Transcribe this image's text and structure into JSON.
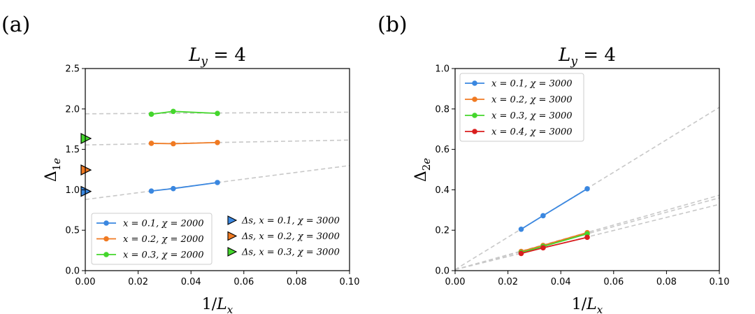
{
  "colors": {
    "blue": "#3a87e0",
    "orange": "#f07a22",
    "green": "#44d62c",
    "red": "#d91e1e",
    "fit": "#c8c8c8"
  },
  "chart_data": [
    {
      "type": "line",
      "panel_label": "(a)",
      "title": "L_y = 4",
      "xlabel": "1/L_x",
      "ylabel": "Δ_1e",
      "xlim": [
        0.0,
        0.1
      ],
      "ylim": [
        0.0,
        2.5
      ],
      "xticks": [
        0.0,
        0.02,
        0.04,
        0.06,
        0.08,
        0.1
      ],
      "xtick_labels": [
        "0.00",
        "0.02",
        "0.04",
        "0.06",
        "0.08",
        "0.10"
      ],
      "yticks": [
        0.0,
        0.5,
        1.0,
        1.5,
        2.0,
        2.5
      ],
      "ytick_labels": [
        "0.0",
        "0.5",
        "1.0",
        "1.5",
        "2.0",
        "2.5"
      ],
      "series": [
        {
          "name": "x = 0.1, χ = 2000",
          "color": "#3a87e0",
          "x": [
            0.025,
            0.0333,
            0.05
          ],
          "y": [
            0.985,
            1.015,
            1.09
          ]
        },
        {
          "name": "x = 0.2, χ = 2000",
          "color": "#f07a22",
          "x": [
            0.025,
            0.0333,
            0.05
          ],
          "y": [
            1.575,
            1.57,
            1.585
          ]
        },
        {
          "name": "x = 0.3, χ = 2000",
          "color": "#44d62c",
          "x": [
            0.025,
            0.0333,
            0.05
          ],
          "y": [
            1.935,
            1.97,
            1.945
          ]
        }
      ],
      "fits": [
        {
          "x": [
            0.0,
            0.1
          ],
          "y": [
            0.88,
            1.3
          ]
        },
        {
          "x": [
            0.0,
            0.1
          ],
          "y": [
            1.555,
            1.615
          ]
        },
        {
          "x": [
            0.0,
            0.1
          ],
          "y": [
            1.94,
            1.96
          ]
        }
      ],
      "markers": [
        {
          "name": "Δ_s, x = 0.1, χ = 3000",
          "color": "#3a87e0",
          "x": 0.0,
          "y": 0.98
        },
        {
          "name": "Δ_s, x = 0.2, χ = 3000",
          "color": "#f07a22",
          "x": 0.0,
          "y": 1.245
        },
        {
          "name": "Δ_s, x = 0.3, χ = 3000",
          "color": "#44d62c",
          "x": 0.0,
          "y": 1.635
        }
      ],
      "legend": [
        {
          "label": "x = 0.1, χ = 2000",
          "color": "#3a87e0"
        },
        {
          "label": "x = 0.2, χ = 2000",
          "color": "#f07a22"
        },
        {
          "label": "x = 0.3, χ = 2000",
          "color": "#44d62c"
        }
      ],
      "legend2": [
        {
          "label": "Δs, x = 0.1, χ = 3000",
          "color": "#3a87e0"
        },
        {
          "label": "Δs, x = 0.2, χ = 3000",
          "color": "#f07a22"
        },
        {
          "label": "Δs, x = 0.3, χ = 3000",
          "color": "#44d62c"
        }
      ]
    },
    {
      "type": "line",
      "panel_label": "(b)",
      "title": "L_y = 4",
      "xlabel": "1/L_x",
      "ylabel": "Δ_2e",
      "xlim": [
        0.0,
        0.1
      ],
      "ylim": [
        0.0,
        1.0
      ],
      "xticks": [
        0.0,
        0.02,
        0.04,
        0.06,
        0.08,
        0.1
      ],
      "xtick_labels": [
        "0.00",
        "0.02",
        "0.04",
        "0.06",
        "0.08",
        "0.10"
      ],
      "yticks": [
        0.0,
        0.2,
        0.4,
        0.6,
        0.8,
        1.0
      ],
      "ytick_labels": [
        "0.0",
        "0.2",
        "0.4",
        "0.6",
        "0.8",
        "1.0"
      ],
      "series": [
        {
          "name": "x = 0.1, χ = 3000",
          "color": "#3a87e0",
          "x": [
            0.025,
            0.0333,
            0.05
          ],
          "y": [
            0.205,
            0.272,
            0.405
          ]
        },
        {
          "name": "x = 0.2, χ = 3000",
          "color": "#f07a22",
          "x": [
            0.025,
            0.0333,
            0.05
          ],
          "y": [
            0.095,
            0.125,
            0.188
          ]
        },
        {
          "name": "x = 0.3, χ = 3000",
          "color": "#44d62c",
          "x": [
            0.025,
            0.0333,
            0.05
          ],
          "y": [
            0.09,
            0.12,
            0.182
          ]
        },
        {
          "name": "x = 0.4, χ = 3000",
          "color": "#d91e1e",
          "x": [
            0.025,
            0.0333,
            0.05
          ],
          "y": [
            0.085,
            0.113,
            0.165
          ]
        }
      ],
      "fits": [
        {
          "x": [
            0.0,
            0.1
          ],
          "y": [
            0.005,
            0.808
          ]
        },
        {
          "x": [
            0.0,
            0.1
          ],
          "y": [
            0.005,
            0.373
          ]
        },
        {
          "x": [
            0.0,
            0.1
          ],
          "y": [
            0.005,
            0.36
          ]
        },
        {
          "x": [
            0.0,
            0.1
          ],
          "y": [
            0.005,
            0.328
          ]
        }
      ],
      "markers": [],
      "legend": [
        {
          "label": "x = 0.1, χ = 3000",
          "color": "#3a87e0"
        },
        {
          "label": "x = 0.2, χ = 3000",
          "color": "#f07a22"
        },
        {
          "label": "x = 0.3, χ = 3000",
          "color": "#44d62c"
        },
        {
          "label": "x = 0.4, χ = 3000",
          "color": "#d91e1e"
        }
      ],
      "legend2": []
    }
  ]
}
